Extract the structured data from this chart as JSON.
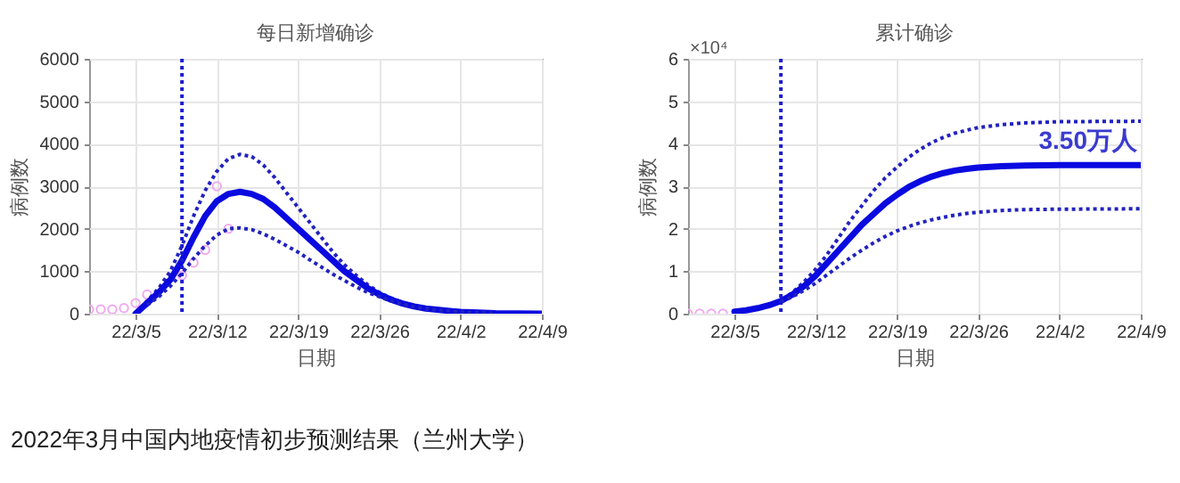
{
  "chart_data": [
    {
      "type": "line",
      "title": "每日新增确诊",
      "xlabel": "日期",
      "ylabel": "病例数",
      "xlim": [
        "2022-03-01",
        "2022-04-09"
      ],
      "xticks": [
        {
          "value": "2022-03-05",
          "label": "22/3/5"
        },
        {
          "value": "2022-03-12",
          "label": "22/3/12"
        },
        {
          "value": "2022-03-19",
          "label": "22/3/19"
        },
        {
          "value": "2022-03-26",
          "label": "22/3/26"
        },
        {
          "value": "2022-04-02",
          "label": "22/4/2"
        },
        {
          "value": "2022-04-09",
          "label": "22/4/9"
        }
      ],
      "ylim": [
        0,
        6000
      ],
      "yticks": [
        0,
        1000,
        2000,
        3000,
        4000,
        5000,
        6000
      ],
      "grid": true,
      "ref_lines": [
        {
          "axis": "x",
          "value": "2022-03-09",
          "color": "#1a1ad0",
          "line_style": "dotted"
        }
      ],
      "annotations": [
        "2022年3月中国内地疫情初步预测结果（兰州大学）"
      ],
      "series": [
        {
          "type": "scatter",
          "marker": "circle",
          "color": "#f0a8f0",
          "x": [
            "2022-03-01",
            "2022-03-02",
            "2022-03-03",
            "2022-03-04",
            "2022-03-05",
            "2022-03-06",
            "2022-03-09",
            "2022-03-10",
            "2022-03-11",
            "2022-03-12",
            "2022-03-13"
          ],
          "values": [
            100,
            100,
            100,
            130,
            250,
            450,
            900,
            1200,
            1500,
            3000,
            2000
          ]
        },
        {
          "type": "line",
          "line_style": "dotted",
          "color": "#2222c0",
          "x": [
            "2022-03-05",
            "2022-03-06",
            "2022-03-07",
            "2022-03-08",
            "2022-03-09",
            "2022-03-10",
            "2022-03-11",
            "2022-03-12",
            "2022-03-13",
            "2022-03-14",
            "2022-03-15",
            "2022-03-16",
            "2022-03-17",
            "2022-03-18",
            "2022-03-19",
            "2022-03-20",
            "2022-03-21",
            "2022-03-22",
            "2022-03-23",
            "2022-03-24",
            "2022-03-25",
            "2022-03-26",
            "2022-03-27",
            "2022-03-28",
            "2022-03-29",
            "2022-03-30",
            "2022-04-02",
            "2022-04-05",
            "2022-04-09"
          ],
          "values": [
            0,
            300,
            600,
            1000,
            1600,
            2300,
            2900,
            3350,
            3650,
            3750,
            3700,
            3500,
            3200,
            2850,
            2500,
            2150,
            1800,
            1450,
            1150,
            900,
            680,
            500,
            370,
            260,
            180,
            120,
            50,
            10,
            0
          ]
        },
        {
          "type": "line",
          "line_style": "solid",
          "color": "#0a0ae0",
          "x": [
            "2022-03-05",
            "2022-03-06",
            "2022-03-07",
            "2022-03-08",
            "2022-03-09",
            "2022-03-10",
            "2022-03-11",
            "2022-03-12",
            "2022-03-13",
            "2022-03-14",
            "2022-03-15",
            "2022-03-16",
            "2022-03-17",
            "2022-03-18",
            "2022-03-19",
            "2022-03-20",
            "2022-03-21",
            "2022-03-22",
            "2022-03-23",
            "2022-03-24",
            "2022-03-25",
            "2022-03-26",
            "2022-03-27",
            "2022-03-28",
            "2022-03-29",
            "2022-03-30",
            "2022-04-02",
            "2022-04-05",
            "2022-04-09"
          ],
          "values": [
            0,
            250,
            500,
            800,
            1250,
            1800,
            2300,
            2650,
            2820,
            2870,
            2820,
            2700,
            2500,
            2250,
            2000,
            1750,
            1500,
            1250,
            1000,
            800,
            600,
            450,
            330,
            240,
            170,
            120,
            40,
            10,
            0
          ]
        },
        {
          "type": "line",
          "line_style": "dotted",
          "color": "#2222c0",
          "x": [
            "2022-03-06",
            "2022-03-07",
            "2022-03-08",
            "2022-03-09",
            "2022-03-10",
            "2022-03-11",
            "2022-03-12",
            "2022-03-13",
            "2022-03-14",
            "2022-03-15",
            "2022-03-16",
            "2022-03-17",
            "2022-03-18",
            "2022-03-19",
            "2022-03-20",
            "2022-03-21",
            "2022-03-22",
            "2022-03-23",
            "2022-03-24",
            "2022-03-25",
            "2022-03-26",
            "2022-03-27",
            "2022-03-28",
            "2022-03-29",
            "2022-03-30",
            "2022-04-02",
            "2022-04-05"
          ],
          "values": [
            200,
            400,
            650,
            950,
            1300,
            1600,
            1850,
            2000,
            2020,
            1980,
            1880,
            1750,
            1600,
            1450,
            1270,
            1100,
            930,
            780,
            630,
            500,
            400,
            300,
            220,
            160,
            110,
            40,
            10
          ]
        }
      ]
    },
    {
      "type": "line",
      "title": "累计确诊",
      "xlabel": "日期",
      "ylabel": "病例数",
      "xlim": [
        "2022-03-01",
        "2022-04-09"
      ],
      "xticks": [
        {
          "value": "2022-03-05",
          "label": "22/3/5"
        },
        {
          "value": "2022-03-12",
          "label": "22/3/12"
        },
        {
          "value": "2022-03-19",
          "label": "22/3/19"
        },
        {
          "value": "2022-03-26",
          "label": "22/3/26"
        },
        {
          "value": "2022-04-02",
          "label": "22/4/2"
        },
        {
          "value": "2022-04-09",
          "label": "22/4/9"
        }
      ],
      "ylim": [
        0,
        6
      ],
      "yticks": [
        0,
        1,
        2,
        3,
        4,
        5,
        6
      ],
      "grid": true,
      "ref_lines": [
        {
          "axis": "x",
          "value": "2022-03-09",
          "color": "#1a1ad0",
          "line_style": "dotted"
        }
      ],
      "annotations": [
        "×10⁴",
        {
          "text": "3.50万人",
          "x": "2022-04-09",
          "y": 3.5
        }
      ],
      "series": [
        {
          "type": "scatter",
          "marker": "circle",
          "color": "#f0a8f0",
          "x": [
            "2022-03-01",
            "2022-03-02",
            "2022-03-03",
            "2022-03-04"
          ],
          "values": [
            0,
            0,
            0,
            0
          ]
        },
        {
          "type": "line",
          "line_style": "dotted",
          "color": "#2222c0",
          "x": [
            "2022-03-05",
            "2022-03-06",
            "2022-03-07",
            "2022-03-08",
            "2022-03-09",
            "2022-03-10",
            "2022-03-11",
            "2022-03-12",
            "2022-03-13",
            "2022-03-14",
            "2022-03-15",
            "2022-03-16",
            "2022-03-17",
            "2022-03-18",
            "2022-03-19",
            "2022-03-20",
            "2022-03-21",
            "2022-03-22",
            "2022-03-23",
            "2022-03-24",
            "2022-03-25",
            "2022-03-26",
            "2022-03-28",
            "2022-03-30",
            "2022-04-02",
            "2022-04-09"
          ],
          "values": [
            0.05,
            0.08,
            0.13,
            0.2,
            0.3,
            0.5,
            0.75,
            1.05,
            1.4,
            1.8,
            2.2,
            2.55,
            2.9,
            3.2,
            3.45,
            3.68,
            3.87,
            4.03,
            4.15,
            4.25,
            4.32,
            4.38,
            4.45,
            4.49,
            4.52,
            4.53
          ]
        },
        {
          "type": "line",
          "line_style": "solid",
          "color": "#0a0ae0",
          "x": [
            "2022-03-05",
            "2022-03-06",
            "2022-03-07",
            "2022-03-08",
            "2022-03-09",
            "2022-03-10",
            "2022-03-11",
            "2022-03-12",
            "2022-03-13",
            "2022-03-14",
            "2022-03-15",
            "2022-03-16",
            "2022-03-17",
            "2022-03-18",
            "2022-03-19",
            "2022-03-20",
            "2022-03-21",
            "2022-03-22",
            "2022-03-23",
            "2022-03-24",
            "2022-03-25",
            "2022-03-26",
            "2022-03-28",
            "2022-03-30",
            "2022-04-02",
            "2022-04-09"
          ],
          "values": [
            0.05,
            0.08,
            0.13,
            0.2,
            0.3,
            0.45,
            0.65,
            0.9,
            1.2,
            1.5,
            1.8,
            2.1,
            2.35,
            2.6,
            2.8,
            2.98,
            3.12,
            3.23,
            3.31,
            3.37,
            3.41,
            3.44,
            3.47,
            3.49,
            3.5,
            3.5
          ]
        },
        {
          "type": "line",
          "line_style": "dotted",
          "color": "#2222c0",
          "x": [
            "2022-03-09",
            "2022-03-10",
            "2022-03-11",
            "2022-03-12",
            "2022-03-13",
            "2022-03-14",
            "2022-03-15",
            "2022-03-16",
            "2022-03-17",
            "2022-03-18",
            "2022-03-19",
            "2022-03-20",
            "2022-03-21",
            "2022-03-22",
            "2022-03-23",
            "2022-03-24",
            "2022-03-25",
            "2022-03-26",
            "2022-03-28",
            "2022-03-30",
            "2022-04-02",
            "2022-04-09"
          ],
          "values": [
            0.28,
            0.4,
            0.55,
            0.72,
            0.92,
            1.12,
            1.32,
            1.5,
            1.67,
            1.82,
            1.95,
            2.05,
            2.14,
            2.21,
            2.27,
            2.32,
            2.36,
            2.39,
            2.43,
            2.45,
            2.46,
            2.47
          ]
        }
      ]
    }
  ]
}
